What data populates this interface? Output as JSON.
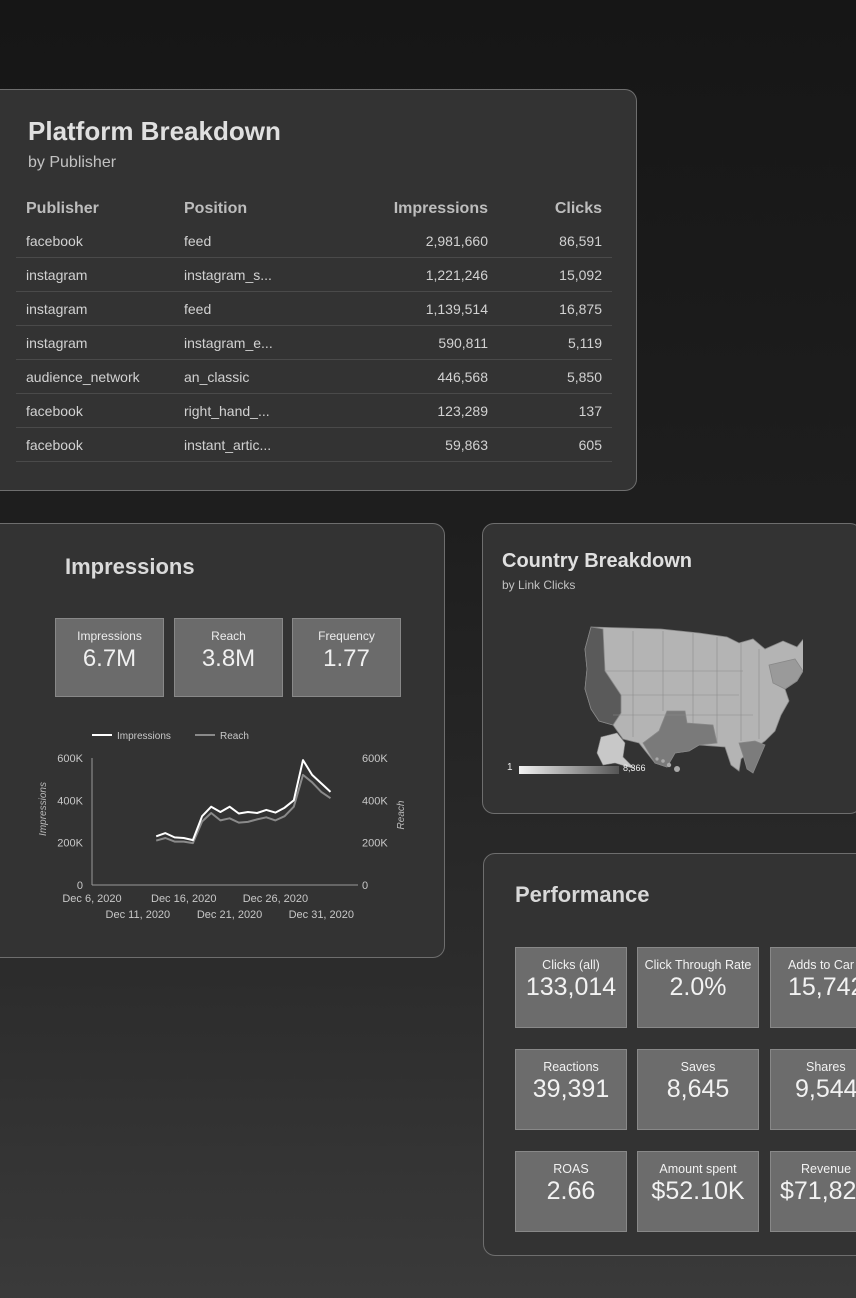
{
  "platform": {
    "title": "Platform Breakdown",
    "subtitle": "by Publisher",
    "columns": [
      "Publisher",
      "Position",
      "Impressions",
      "Clicks"
    ],
    "rows": [
      [
        "facebook",
        "feed",
        "2,981,660",
        "86,591"
      ],
      [
        "instagram",
        "instagram_s...",
        "1,221,246",
        "15,092"
      ],
      [
        "instagram",
        "feed",
        "1,139,514",
        "16,875"
      ],
      [
        "instagram",
        "instagram_e...",
        "590,811",
        "5,119"
      ],
      [
        "audience_network",
        "an_classic",
        "446,568",
        "5,850"
      ],
      [
        "facebook",
        "right_hand_...",
        "123,289",
        "137"
      ],
      [
        "facebook",
        "instant_artic...",
        "59,863",
        "605"
      ]
    ]
  },
  "impressions": {
    "title": "Impressions",
    "kpis": [
      {
        "label": "Impressions",
        "value": "6.7M"
      },
      {
        "label": "Reach",
        "value": "3.8M"
      },
      {
        "label": "Frequency",
        "value": "1.77"
      }
    ],
    "chart_data": {
      "type": "line",
      "series": [
        {
          "name": "Impressions",
          "color": "#ffffff",
          "values": [
            [
              "2020-12-13",
              230000
            ],
            [
              "2020-12-14",
              245000
            ],
            [
              "2020-12-15",
              225000
            ],
            [
              "2020-12-16",
              222000
            ],
            [
              "2020-12-17",
              212000
            ],
            [
              "2020-12-18",
              325000
            ],
            [
              "2020-12-19",
              370000
            ],
            [
              "2020-12-20",
              345000
            ],
            [
              "2020-12-21",
              370000
            ],
            [
              "2020-12-22",
              338000
            ],
            [
              "2020-12-23",
              345000
            ],
            [
              "2020-12-24",
              340000
            ],
            [
              "2020-12-25",
              355000
            ],
            [
              "2020-12-26",
              342000
            ],
            [
              "2020-12-27",
              365000
            ],
            [
              "2020-12-28",
              400000
            ],
            [
              "2020-12-29",
              590000
            ],
            [
              "2020-12-30",
              520000
            ],
            [
              "2020-12-31",
              480000
            ],
            [
              "2021-01-01",
              440000
            ]
          ]
        },
        {
          "name": "Reach",
          "color": "#8a8a8a",
          "values": [
            [
              "2020-12-13",
              210000
            ],
            [
              "2020-12-14",
              222000
            ],
            [
              "2020-12-15",
              205000
            ],
            [
              "2020-12-16",
              205000
            ],
            [
              "2020-12-17",
              198000
            ],
            [
              "2020-12-18",
              300000
            ],
            [
              "2020-12-19",
              340000
            ],
            [
              "2020-12-20",
              305000
            ],
            [
              "2020-12-21",
              315000
            ],
            [
              "2020-12-22",
              295000
            ],
            [
              "2020-12-23",
              298000
            ],
            [
              "2020-12-24",
              310000
            ],
            [
              "2020-12-25",
              320000
            ],
            [
              "2020-12-26",
              305000
            ],
            [
              "2020-12-27",
              325000
            ],
            [
              "2020-12-28",
              370000
            ],
            [
              "2020-12-29",
              520000
            ],
            [
              "2020-12-30",
              485000
            ],
            [
              "2020-12-31",
              440000
            ],
            [
              "2021-01-01",
              410000
            ]
          ]
        }
      ],
      "x_ticks": [
        "Dec 6, 2020",
        "Dec 11, 2020",
        "Dec 16, 2020",
        "Dec 21, 2020",
        "Dec 26, 2020",
        "Dec 31, 2020"
      ],
      "ylabel_left": "Impressions",
      "ylabel_right": "Reach",
      "y_ticks": [
        "0",
        "200K",
        "400K",
        "600K"
      ],
      "ylim": [
        0,
        600000
      ],
      "legend": "top"
    }
  },
  "country": {
    "title": "Country Breakdown",
    "subtitle": "by Link Clicks",
    "legend_min": "1",
    "legend_max": "8,366"
  },
  "performance": {
    "title": "Performance",
    "cards": [
      {
        "label": "Clicks (all)",
        "value": "133,014"
      },
      {
        "label": "Click Through Rate",
        "value": "2.0%"
      },
      {
        "label": "Adds to Car",
        "value": "15,742"
      },
      {
        "label": "Reactions",
        "value": "39,391"
      },
      {
        "label": "Saves",
        "value": "8,645"
      },
      {
        "label": "Shares",
        "value": "9,544"
      },
      {
        "label": "ROAS",
        "value": "2.66"
      },
      {
        "label": "Amount spent",
        "value": "$52.10K"
      },
      {
        "label": "Revenue",
        "value": "$71,82"
      }
    ]
  }
}
